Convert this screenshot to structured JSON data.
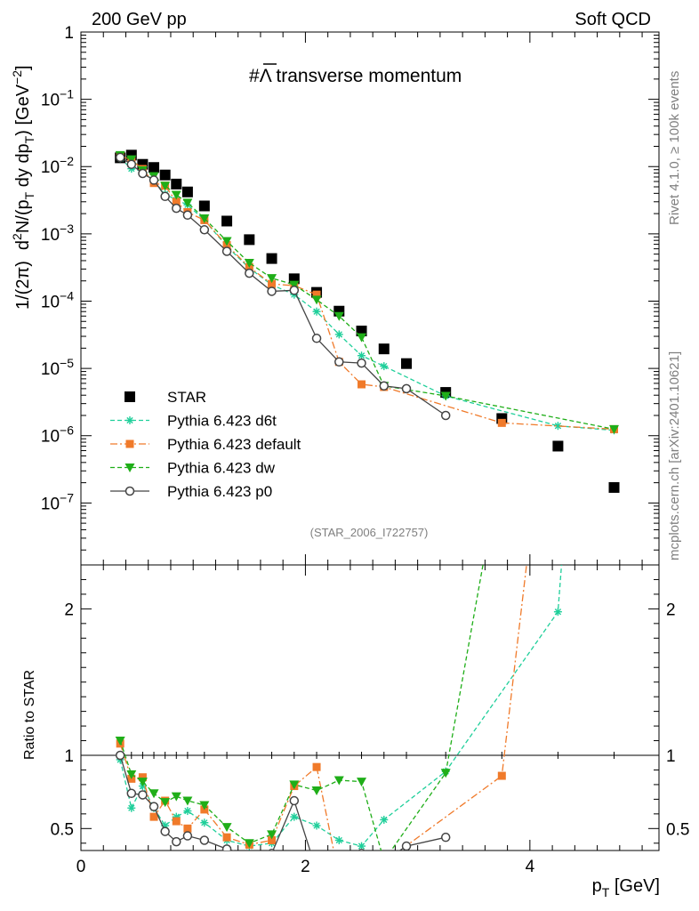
{
  "header": {
    "left": "200 GeV pp",
    "right": "Soft QCD"
  },
  "side_labels": {
    "rivet": "Rivet 4.1.0, ≥ 100k events",
    "mcplots": "mcplots.cern.ch [arXiv:2401.10621]"
  },
  "chart_data": {
    "type": "scatter",
    "title": "#Λ̅ transverse momentum",
    "title_prefix": "#",
    "title_symbol": "Λ",
    "title_rest": " transverse momentum",
    "analysis_tag": "(STAR_2006_I722757)",
    "xlabel": "p_T [GeV]",
    "xlabel_main": "p",
    "xlabel_sub": "T",
    "xlabel_unit": " [GeV]",
    "ylabel": "1/(2π)  d²N/(p_T dy dp_T) [GeV⁻²]",
    "ylabel_parts": {
      "a": "1/(2π)",
      "b": "d",
      "sup2": "2",
      "c": "N/(p",
      "subT": "T",
      "d": " dy dp",
      "e": ") [GeV",
      "supm2": "−2",
      "f": "]"
    },
    "ratio_ylabel": "Ratio to STAR",
    "xlim": [
      0,
      5.15
    ],
    "ylim": [
      1.2e-08,
      1
    ],
    "ratio_ylim": [
      0.35,
      2.3
    ],
    "x_ticks": [
      "0",
      "2",
      "4"
    ],
    "y_ticks": [
      "1",
      "10^-1",
      "10^-2",
      "10^-3",
      "10^-4",
      "10^-5",
      "10^-6",
      "10^-7"
    ],
    "ratio_ticks": [
      "0.5",
      "1",
      "2"
    ],
    "ratio_ticks_right": [
      "0.5",
      "1",
      "2"
    ],
    "legend_position": "lower-left",
    "colors": {
      "data": "#000000",
      "d6t": "#1fcf9a",
      "default": "#f07a2a",
      "dw": "#1fae18",
      "p0": "#444444"
    },
    "series": [
      {
        "name": "STAR",
        "key": "data",
        "marker": "square",
        "line": "none",
        "x": [
          0.35,
          0.45,
          0.55,
          0.65,
          0.75,
          0.85,
          0.95,
          1.1,
          1.3,
          1.5,
          1.7,
          1.9,
          2.1,
          2.3,
          2.5,
          2.7,
          2.9,
          3.25,
          3.75,
          4.25,
          4.75
        ],
        "y": [
          0.0135,
          0.0148,
          0.0108,
          0.0097,
          0.0075,
          0.0055,
          0.0042,
          0.0026,
          0.00155,
          0.00082,
          0.00043,
          0.000215,
          0.000135,
          7.1e-05,
          3.6e-05,
          1.95e-05,
          1.18e-05,
          4.4e-06,
          1.8e-06,
          7e-07,
          1.7e-07
        ]
      },
      {
        "name": "Pythia 6.423 d6t",
        "key": "d6t",
        "marker": "star",
        "line": "dashed",
        "x": [
          0.35,
          0.45,
          0.55,
          0.65,
          0.75,
          0.85,
          0.95,
          1.1,
          1.3,
          1.5,
          1.7,
          1.9,
          2.1,
          2.3,
          2.5,
          2.7,
          3.25,
          4.25,
          4.75
        ],
        "y": [
          0.0133,
          0.0093,
          0.0085,
          0.0062,
          0.0039,
          0.0032,
          0.0027,
          0.0016,
          0.00065,
          0.00031,
          0.000175,
          0.000125,
          7e-05,
          3.2e-05,
          1.55e-05,
          1.08e-05,
          3.9e-06,
          1.4e-06,
          1.2e-06
        ],
        "ratio": [
          0.97,
          0.64,
          0.79,
          0.64,
          0.52,
          0.58,
          0.62,
          0.54,
          0.42,
          0.38,
          0.4,
          0.58,
          0.52,
          0.42,
          0.38,
          0.56,
          0.89,
          1.98,
          7.0
        ]
      },
      {
        "name": "Pythia 6.423 default",
        "key": "default",
        "marker": "square-small",
        "line": "dashdot",
        "x": [
          0.35,
          0.45,
          0.55,
          0.65,
          0.75,
          0.85,
          0.95,
          1.1,
          1.3,
          1.5,
          1.7,
          1.9,
          2.1,
          2.3,
          2.5,
          2.7,
          3.75,
          4.75
        ],
        "y": [
          0.0145,
          0.0125,
          0.0092,
          0.0057,
          0.0052,
          0.003,
          0.0021,
          0.0016,
          0.00068,
          0.00032,
          0.00018,
          0.00017,
          0.000125,
          1.25e-05,
          5.8e-06,
          5.3e-06,
          1.55e-06,
          1.25e-06
        ],
        "ratio": [
          1.08,
          0.84,
          0.85,
          0.58,
          0.69,
          0.55,
          0.5,
          0.63,
          0.44,
          0.39,
          0.42,
          0.79,
          0.92,
          0.17,
          0.16,
          0.27,
          0.86,
          7.4
        ]
      },
      {
        "name": "Pythia 6.423 dw",
        "key": "dw",
        "marker": "triangle-down",
        "line": "dashed",
        "x": [
          0.35,
          0.45,
          0.55,
          0.65,
          0.75,
          0.85,
          0.95,
          1.1,
          1.3,
          1.5,
          1.7,
          1.9,
          2.1,
          2.3,
          2.5,
          2.7,
          3.25,
          4.75
        ],
        "y": [
          0.0148,
          0.0128,
          0.0088,
          0.0072,
          0.0052,
          0.0038,
          0.0029,
          0.0017,
          0.00078,
          0.00037,
          0.00022,
          0.000175,
          0.000105,
          6e-05,
          2.9e-05,
          5.5e-06,
          3.9e-06,
          1.25e-06
        ],
        "ratio": [
          1.1,
          0.87,
          0.82,
          0.74,
          0.68,
          0.72,
          0.69,
          0.66,
          0.51,
          0.4,
          0.46,
          0.8,
          0.76,
          0.83,
          0.82,
          0.28,
          0.88,
          7.3
        ]
      },
      {
        "name": "Pythia 6.423 p0",
        "key": "p0",
        "marker": "circle-open",
        "line": "solid",
        "x": [
          0.35,
          0.45,
          0.55,
          0.65,
          0.75,
          0.85,
          0.95,
          1.1,
          1.3,
          1.5,
          1.7,
          1.9,
          2.1,
          2.3,
          2.5,
          2.7,
          2.9,
          3.25
        ],
        "y": [
          0.0137,
          0.0108,
          0.0079,
          0.0063,
          0.0036,
          0.0024,
          0.0019,
          0.00115,
          0.00055,
          0.00026,
          0.00014,
          0.000145,
          2.8e-05,
          1.25e-05,
          1.2e-05,
          5.5e-06,
          5e-06,
          2e-06
        ],
        "ratio": [
          1.0,
          0.74,
          0.73,
          0.65,
          0.48,
          0.41,
          0.45,
          0.42,
          0.36,
          0.32,
          0.33,
          0.69,
          0.21,
          0.18,
          0.33,
          0.28,
          0.38,
          0.44
        ]
      }
    ]
  }
}
